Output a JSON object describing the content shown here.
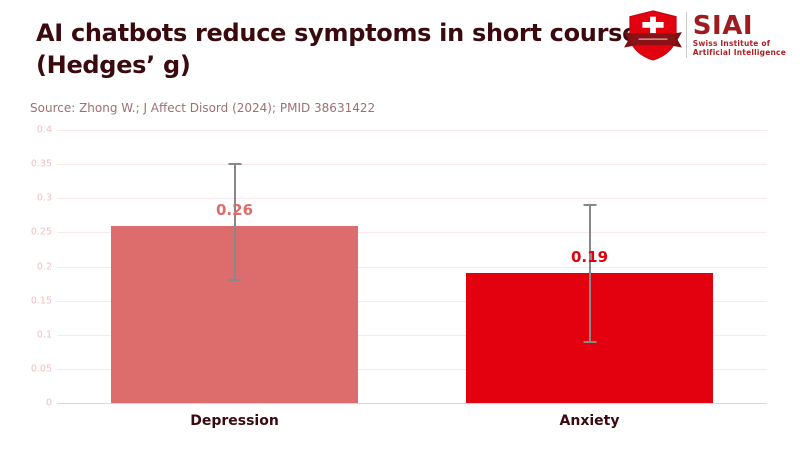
{
  "header": {
    "title_line1": "AI chatbots reduce symptoms in short courses",
    "title_line2": "(Hedges’ g)",
    "source": "Source: Zhong W.; J Affect Disord (2024); PMID 38631422"
  },
  "logo": {
    "acronym": "SIAI",
    "subtitle_line1": "Swiss Institute of",
    "subtitle_line2": "Artificial Intelligence",
    "shield_color": "#e3000f",
    "banner_color": "#8a1216",
    "text_color": "#9e1b20"
  },
  "chart_data": {
    "type": "bar",
    "title": "AI chatbots reduce symptoms in short courses (Hedges’ g)",
    "xlabel": "",
    "ylabel": "",
    "categories": [
      "Depression",
      "Anxiety"
    ],
    "values": [
      0.26,
      0.19
    ],
    "value_labels": [
      "0.26",
      "0.19"
    ],
    "error_low": [
      0.18,
      0.09
    ],
    "error_high": [
      0.35,
      0.29
    ],
    "bar_colors": [
      "#dd6c6c",
      "#e3000f"
    ],
    "label_colors": [
      "#dd6c6c",
      "#e3000f"
    ],
    "ylim": [
      0,
      0.4
    ],
    "yticks": [
      0,
      0.05,
      0.1,
      0.15,
      0.2,
      0.25,
      0.3,
      0.35,
      0.4
    ],
    "ytick_labels": [
      "0",
      "0.05",
      "0.1",
      "0.15",
      "0.2",
      "0.25",
      "0.3",
      "0.35",
      "0.4"
    ],
    "grid": true,
    "legend": false
  },
  "colors": {
    "title": "#3a0a0f",
    "source": "#9c7174",
    "tick": "#f2bfbf",
    "gridline": "#fbe8e8",
    "axis_line": "#d8d8d8",
    "error_bar": "#888888",
    "category_label": "#3a0a0f",
    "background": "#ffffff"
  }
}
